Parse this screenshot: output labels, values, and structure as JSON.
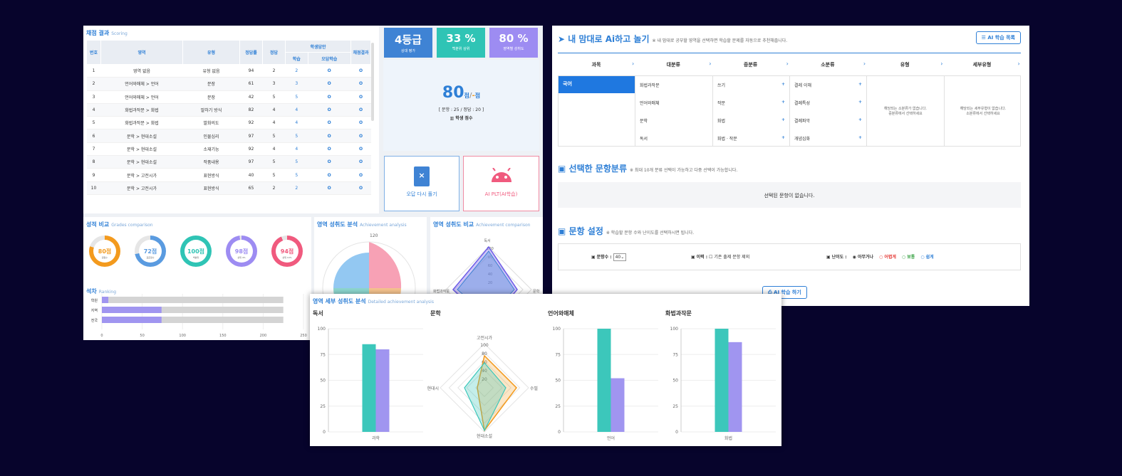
{
  "scoring": {
    "title": "채점 결과",
    "subtitle": "Scoring",
    "headers": {
      "no": "번호",
      "area": "영역",
      "type": "유형",
      "rate": "정답률",
      "answer": "정답",
      "student": "학생답안",
      "study": "학습",
      "wrong": "오답학습",
      "result": "채점결과"
    },
    "rows": [
      {
        "no": "1",
        "area": "영역 없음",
        "type": "유형 없음",
        "rate": "94",
        "ans": "2",
        "stu": "2",
        "res": "O"
      },
      {
        "no": "2",
        "area": "언어와매체 > 언어",
        "type": "문장",
        "rate": "61",
        "ans": "3",
        "stu": "3",
        "res": "O"
      },
      {
        "no": "3",
        "area": "언어와매체 > 언어",
        "type": "문장",
        "rate": "42",
        "ans": "5",
        "stu": "5",
        "res": "O"
      },
      {
        "no": "4",
        "area": "화법과작문 > 화법",
        "type": "말하기 방식",
        "rate": "82",
        "ans": "4",
        "stu": "4",
        "res": "O"
      },
      {
        "no": "5",
        "area": "화법과작문 > 화법",
        "type": "발화의도",
        "rate": "92",
        "ans": "4",
        "stu": "4",
        "res": "O"
      },
      {
        "no": "6",
        "area": "문학 > 현대소설",
        "type": "인물심리",
        "rate": "97",
        "ans": "5",
        "stu": "5",
        "res": "O"
      },
      {
        "no": "7",
        "area": "문학 > 현대소설",
        "type": "소재기능",
        "rate": "92",
        "ans": "4",
        "stu": "4",
        "res": "O"
      },
      {
        "no": "8",
        "area": "문학 > 현대소설",
        "type": "작품내용",
        "rate": "97",
        "ans": "5",
        "stu": "5",
        "res": "O"
      },
      {
        "no": "9",
        "area": "문학 > 고전시가",
        "type": "표현방식",
        "rate": "40",
        "ans": "5",
        "stu": "5",
        "res": "O"
      },
      {
        "no": "10",
        "area": "문학 > 고전시가",
        "type": "표현방식",
        "rate": "65",
        "ans": "2",
        "stu": "2",
        "res": "O"
      }
    ],
    "stu_mark": "O"
  },
  "cards": [
    {
      "big": "4등급",
      "small": "상대 평가",
      "color": "#3f83d4"
    },
    {
      "big": "33 %",
      "small": "백분위 상위",
      "color": "#2fc4b5"
    },
    {
      "big": "80 %",
      "small": "영역별 성취도",
      "color": "#9d8cf2"
    }
  ],
  "score": {
    "value": "80",
    "unit": "점",
    "sep": "/",
    "dash": "-",
    "unit2": "점",
    "detail": "[ 문항 : 25 / 정답 : 20 ]",
    "label": "학생 점수"
  },
  "actions": {
    "retry": "오답 다시 풀기",
    "ai": "AI PLT(AI학습)"
  },
  "grades": {
    "title": "성적 비교",
    "subtitle": "Grades comparison",
    "items": [
      {
        "v": "80점",
        "s": "원점수",
        "c": "#f39a1d",
        "p": 80
      },
      {
        "v": "72점",
        "s": "표준점수",
        "c": "#5a9be0",
        "p": 72
      },
      {
        "v": "100점",
        "s": "백분위",
        "c": "#2fc4b5",
        "p": 100
      },
      {
        "v": "98점",
        "s": "상위 4%",
        "c": "#9d8cf2",
        "p": 98
      },
      {
        "v": "94점",
        "s": "상위 10%",
        "c": "#f05a7e",
        "p": 94
      }
    ]
  },
  "achieve": {
    "title": "영역 성취도 분석",
    "subtitle": "Achievement analysis",
    "max": "120"
  },
  "compare": {
    "title": "영역 성취도 비교",
    "subtitle": "Achievement comparison",
    "top": "독서",
    "ticks": [
      "100",
      "80",
      "60",
      "40",
      "20"
    ],
    "left": "화법과작문",
    "right": "문학"
  },
  "ranking": {
    "title": "석차",
    "subtitle": "Ranking",
    "rows": [
      {
        "label": "학원",
        "v": 8
      },
      {
        "label": "지역",
        "v": 74
      },
      {
        "label": "전국",
        "v": 74
      }
    ],
    "total": 225,
    "ticks": [
      "0",
      "50",
      "100",
      "150",
      "200",
      "250"
    ]
  },
  "ai": {
    "title": "내 맘대로 Ai하고 놀기",
    "note": "※ 내 맘대로 공부할 영역을 선택하면 학습할 문제를 자동으로 추천해줍니다.",
    "list_btn": "AI 학습 목록",
    "cols": [
      "과목",
      "대분류",
      "중분류",
      "소분류",
      "유형",
      "세부유형"
    ],
    "subject": "국어",
    "major": [
      "화법과작문",
      "언어와매체",
      "문학",
      "독서"
    ],
    "middle": [
      "쓰기",
      "작문",
      "화법",
      "화법 · 작문"
    ],
    "minor": [
      "결레 이해",
      "결례특성",
      "결례파악",
      "개념심화"
    ],
    "type_empty": "해당되는 소분류가 없습니다.\n중분류에서 선택하세요",
    "detail_empty": "해당되는 세부유형이 없습니다.\n소분류에서 선택하세요"
  },
  "selected": {
    "title": "선택한 문항분류",
    "note": "※ 최대 10개 분류 선택이 가능하고 다중 선택이 가능합니다.",
    "empty": "선택된 문항이 없습니다."
  },
  "setting": {
    "title": "문항 설정",
    "note": "※ 학습할 문항 수와 난이도를 선택하시면 됩니다.",
    "count_label": "문항수 :",
    "count_value": "40",
    "history_label": "이력 :",
    "history_opt": "기존 출제 문항 제외",
    "level_label": "난이도 :",
    "levels": [
      {
        "t": "아무거나",
        "c": "#333"
      },
      {
        "t": "어렵게",
        "c": "#e53935"
      },
      {
        "t": "보통",
        "c": "#2e9d3a"
      },
      {
        "t": "쉽게",
        "c": "#2e7fd6"
      }
    ],
    "start": "AI 학습 하기"
  },
  "detail": {
    "title": "영역 세부 성취도 분석",
    "subtitle": "Detailed achievement analysis",
    "charts": [
      {
        "name": "독서",
        "cat": "과학",
        "v": [
          85,
          80
        ]
      },
      {
        "name": "문학",
        "radar": true,
        "top": "고전시가",
        "right": "수필",
        "bottom": "현대소설",
        "left": "현대시",
        "ticks": [
          "100",
          "80",
          "60",
          "40",
          "20"
        ]
      },
      {
        "name": "언어와매체",
        "cat": "언어",
        "v": [
          100,
          52
        ]
      },
      {
        "name": "화법과작문",
        "cat": "화법",
        "v": [
          100,
          87
        ]
      }
    ],
    "yticks": [
      "100",
      "75",
      "50",
      "25",
      "0"
    ]
  },
  "chart_data": [
    {
      "type": "bar",
      "title": "독서",
      "categories": [
        "과학"
      ],
      "series": [
        {
          "values": [
            85
          ]
        },
        {
          "values": [
            80
          ]
        }
      ],
      "ylim": [
        0,
        100
      ]
    },
    {
      "type": "bar",
      "title": "언어와매체",
      "categories": [
        "언어"
      ],
      "series": [
        {
          "values": [
            100
          ]
        },
        {
          "values": [
            52
          ]
        }
      ],
      "ylim": [
        0,
        100
      ]
    },
    {
      "type": "bar",
      "title": "화법과작문",
      "categories": [
        "화법"
      ],
      "series": [
        {
          "values": [
            100
          ]
        },
        {
          "values": [
            87
          ]
        }
      ],
      "ylim": [
        0,
        100
      ]
    },
    {
      "type": "bar",
      "title": "석차",
      "categories": [
        "학원",
        "지역",
        "전국"
      ],
      "values": [
        8,
        74,
        74
      ],
      "xlim": [
        0,
        250
      ]
    }
  ],
  "colors": {
    "teal": "#3cc7bb",
    "purple": "#a095f0",
    "blue": "#2e7fd6"
  }
}
